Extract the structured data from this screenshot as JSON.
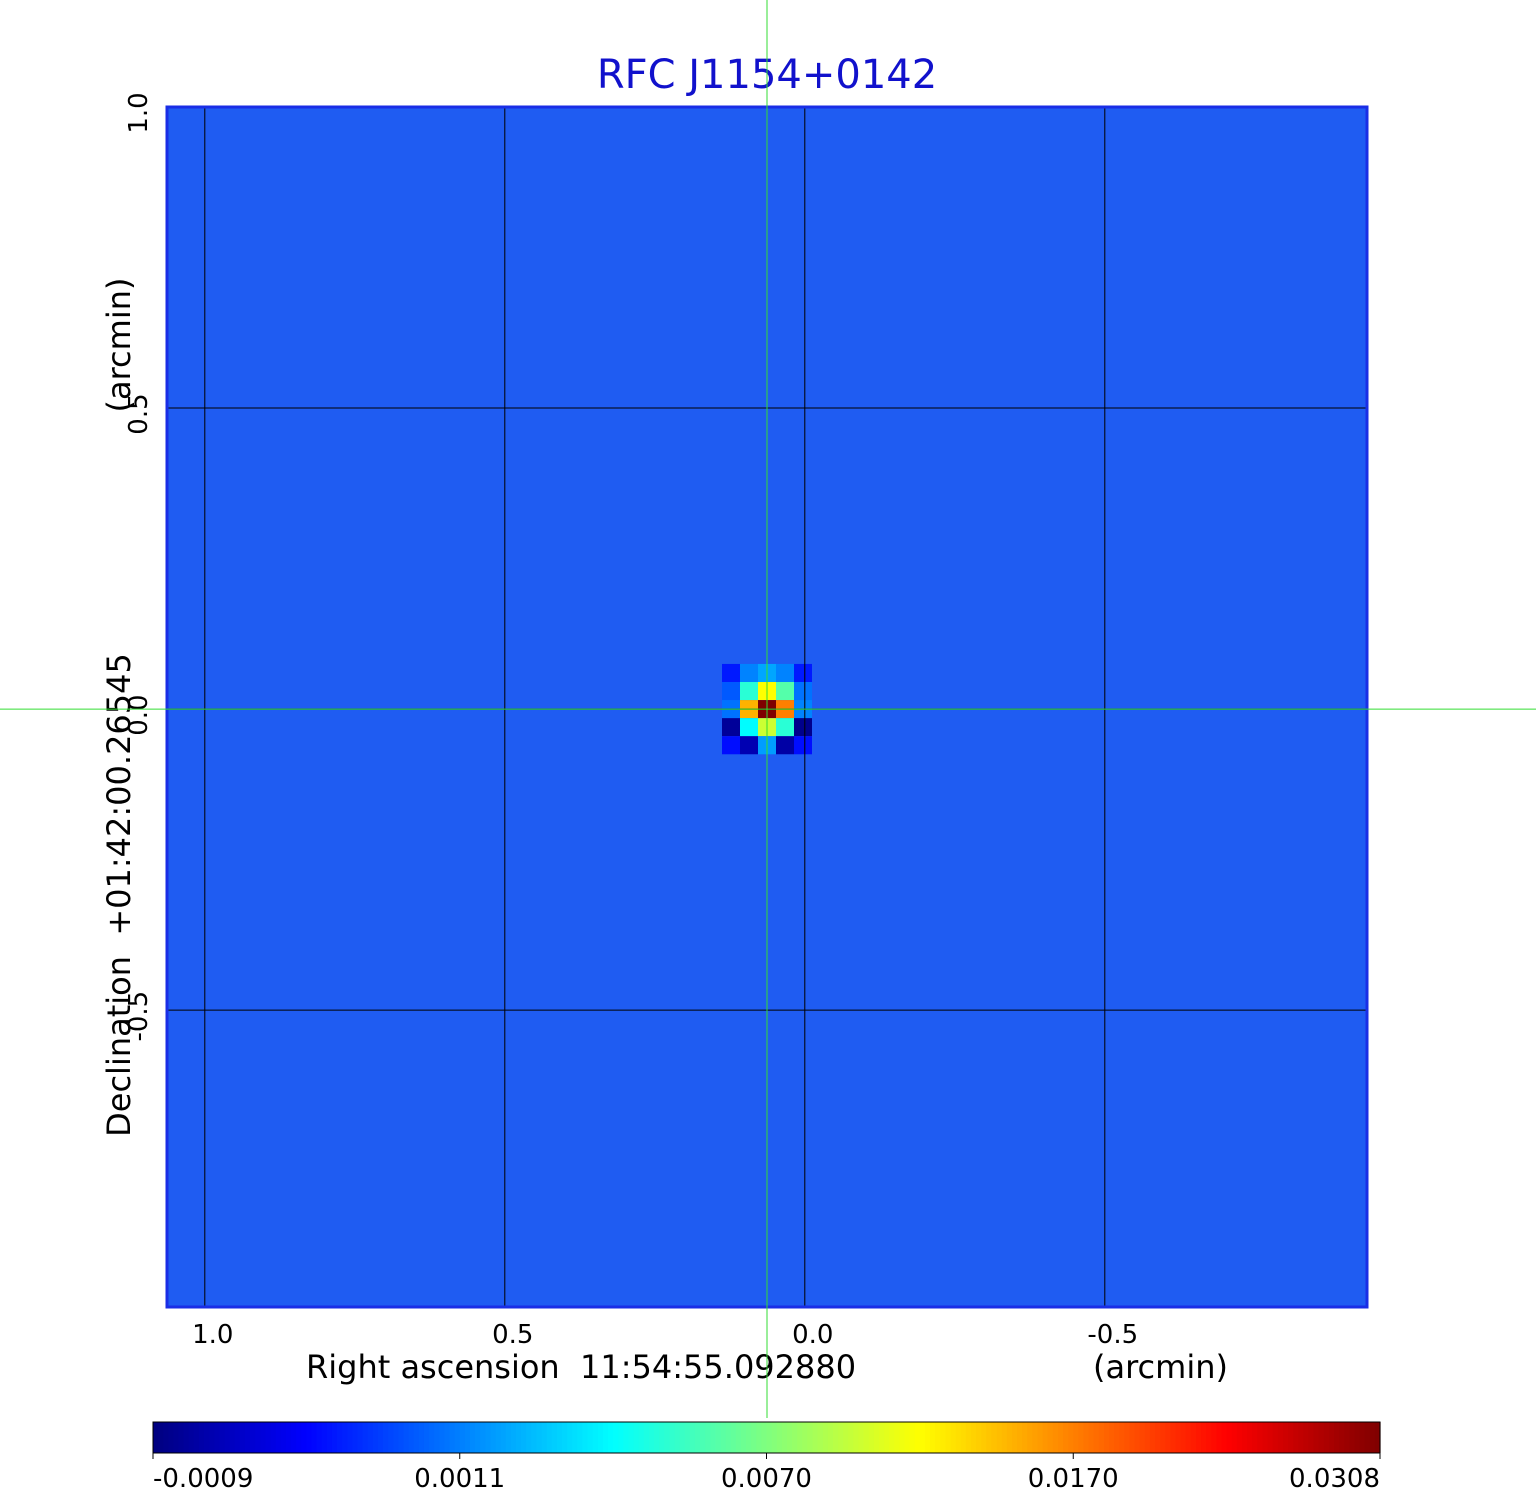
{
  "chart_data": {
    "type": "heatmap",
    "title": "RFC J1154+0142",
    "x_label": "Right ascension  11:54:55.092880",
    "x_unit": "(arcmin)",
    "y_label": "Declination  +01:42:00.26545",
    "y_unit": "(arcmin)",
    "xlim": [
      1.063,
      -0.937
    ],
    "ylim": [
      -0.993,
      1.0
    ],
    "xticks": [
      {
        "value": 1,
        "label": "1.0"
      },
      0.5,
      {
        "value": 0,
        "label": "0.0"
      },
      -0.5
    ],
    "yticks": [
      {
        "value": 1,
        "label": "1.0"
      },
      0.5,
      {
        "value": 0,
        "label": "0.0"
      },
      -0.5
    ],
    "grid": true,
    "marker": {
      "x": 0.063,
      "y": 0,
      "color": "#33dd33"
    },
    "pixel_size": 0.03,
    "x": [
      0.123,
      0.093,
      0.063,
      0.033,
      0.003
    ],
    "y": [
      0.06,
      0.03,
      0,
      -0.03,
      -0.06
    ],
    "values": [
      [
        0.0003,
        0.0012,
        0.002,
        0.0012,
        0.0003
      ],
      [
        0.0008,
        0.005,
        0.012,
        0.006,
        0.001
      ],
      [
        0.001,
        0.015,
        0.0308,
        0.017,
        0.0012
      ],
      [
        -0.0007,
        0.004,
        0.01,
        0.005,
        -0.0008
      ],
      [
        0.0002,
        -0.0005,
        0.0018,
        -0.0006,
        0.0002
      ]
    ],
    "colorbar_ticks": [
      -0.0009,
      0.0011,
      {
        "value": 0.007,
        "label": "0.0070"
      },
      {
        "value": 0.017,
        "label": "0.0170"
      },
      0.0308
    ],
    "colormap": [
      "#00007f",
      "#0000ff",
      "#007fff",
      "#00ffff",
      "#7fff7f",
      "#ffff00",
      "#ff7f00",
      "#ff0000",
      "#7f0000"
    ]
  }
}
